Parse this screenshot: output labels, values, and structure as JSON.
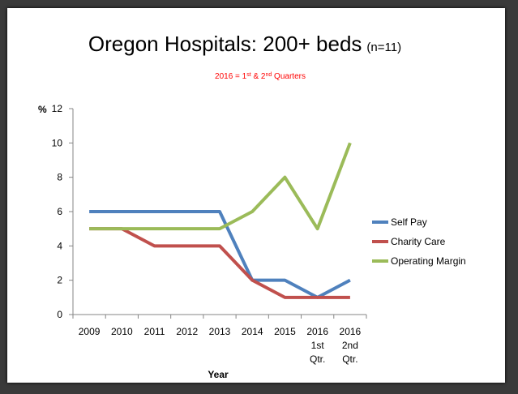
{
  "chart_data": {
    "type": "line",
    "title": "Oregon Hospitals:  200+ beds",
    "title_suffix": "(n=11)",
    "subtitle": {
      "prefix": "2016 = 1",
      "sup1": "st",
      "middle": " & 2",
      "sup2": "nd",
      "suffix": " Quarters"
    },
    "ylabel": "%",
    "xlabel": "Year",
    "ylim": [
      0,
      12
    ],
    "yticks": [
      0,
      2,
      4,
      6,
      8,
      10,
      12
    ],
    "categories": [
      [
        "2009"
      ],
      [
        "2010"
      ],
      [
        "2011"
      ],
      [
        "2012"
      ],
      [
        "2013"
      ],
      [
        "2014"
      ],
      [
        "2015"
      ],
      [
        "2016",
        "1st",
        "Qtr."
      ],
      [
        "2016",
        "2nd",
        "Qtr."
      ]
    ],
    "series": [
      {
        "name": "Self Pay",
        "color": "#4f81bd",
        "values": [
          6,
          6,
          6,
          6,
          6,
          2,
          2,
          1,
          2
        ]
      },
      {
        "name": "Charity Care",
        "color": "#c0504d",
        "values": [
          5,
          5,
          4,
          4,
          4,
          2,
          1,
          1,
          1
        ]
      },
      {
        "name": "Operating Margin",
        "color": "#9bbb59",
        "values": [
          5,
          5,
          5,
          5,
          5,
          6,
          8,
          5,
          10
        ]
      }
    ],
    "grid": false,
    "legend_position": "right"
  }
}
